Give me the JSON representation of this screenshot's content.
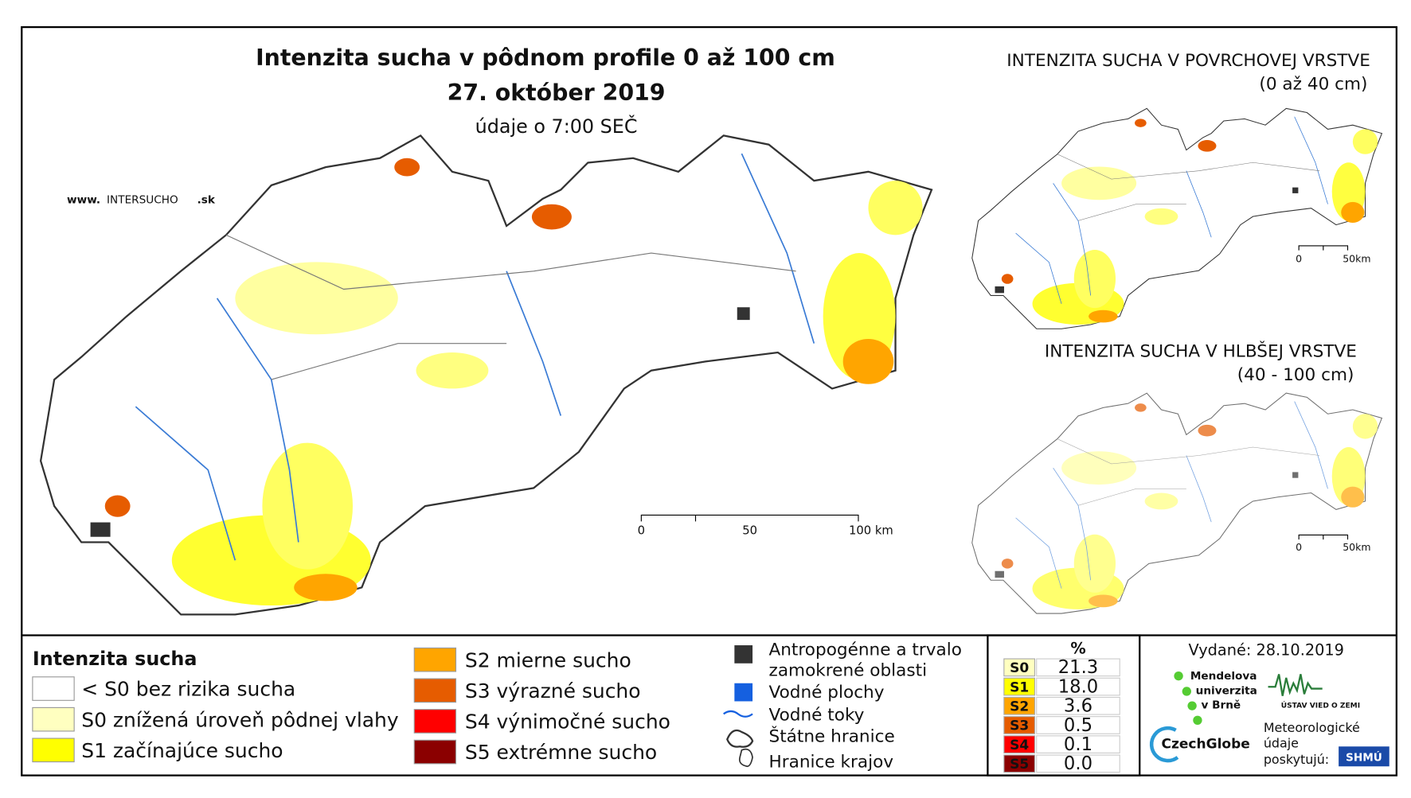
{
  "header": {
    "title": "Intenzita sucha v pôdnom profile 0 až 100 cm",
    "date": "27. október 2019",
    "time": "údaje o 7:00 SEČ",
    "website": {
      "prefix": "www.",
      "name": "INTERSUCHO",
      "suffix": ".sk"
    }
  },
  "main_scale": [
    "0",
    "50",
    "100 km"
  ],
  "insets": [
    {
      "title": "INTENZITA SUCHA V POVRCHOVEJ VRSTVE",
      "subtitle": "(0 až 40 cm)",
      "scale": [
        "0",
        "50km"
      ]
    },
    {
      "title": "INTENZITA SUCHA V HLBŠEJ VRSTVE",
      "subtitle": "(40 - 100 cm)",
      "scale": [
        "0",
        "50km"
      ]
    }
  ],
  "legend": {
    "title": "Intenzita sucha",
    "items": [
      "< S0 bez rizika sucha",
      "S0 znížená úroveň pôdnej vlahy",
      "S1 začínajúce sucho",
      "S2 mierne sucho",
      "S3 výrazné sucho",
      "S4 výnimočné sucho",
      "S5 extrémne sucho"
    ]
  },
  "legend2": {
    "items": [
      [
        "Antropogénne a trvalo",
        "zamokrené oblasti"
      ],
      [
        "Vodné plochy"
      ],
      [
        "Vodné toky"
      ],
      [
        "Štátne hranice"
      ],
      [
        "Hranice krajov"
      ]
    ]
  },
  "table": {
    "header": "%",
    "rows": [
      [
        "S0",
        "21.3"
      ],
      [
        "S1",
        "18.0"
      ],
      [
        "S2",
        "3.6"
      ],
      [
        "S3",
        "0.5"
      ],
      [
        "S4",
        "0.1"
      ],
      [
        "S5",
        "0.0"
      ]
    ]
  },
  "credits": {
    "issued": "Vydané: 28.10.2019",
    "mendel": [
      "Mendelova",
      "univerzita",
      "v Brně"
    ],
    "uvz": "ÚSTAV VIED O ZEMI",
    "czechglobe": "CzechGlobe",
    "met": [
      "Meteorologické",
      "údaje",
      "poskytujú:"
    ],
    "shmu": "SHMÚ"
  }
}
